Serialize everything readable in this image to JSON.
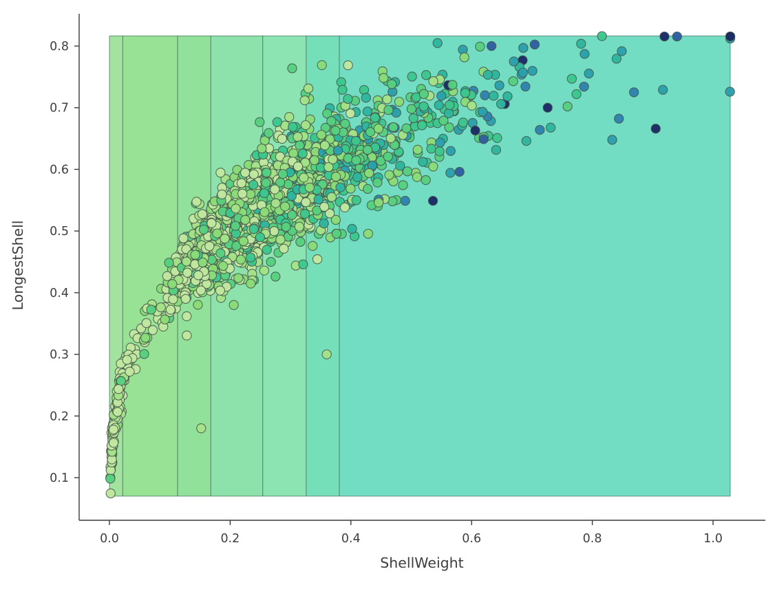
{
  "chart_data": {
    "type": "scatter",
    "title": "",
    "xlabel": "ShellWeight",
    "ylabel": "LongestShell",
    "x_ticks": [
      0.0,
      0.2,
      0.4,
      0.6,
      0.8,
      1.0
    ],
    "x_tick_labels": [
      "0.0",
      "0.2",
      "0.4",
      "0.6",
      "0.8",
      "1.0"
    ],
    "y_ticks": [
      0.1,
      0.2,
      0.3,
      0.4,
      0.5,
      0.6,
      0.7,
      0.8
    ],
    "y_tick_labels": [
      "0.1",
      "0.2",
      "0.3",
      "0.4",
      "0.5",
      "0.6",
      "0.7",
      "0.8"
    ],
    "xlim": [
      -0.05,
      1.08
    ],
    "ylim": [
      0.045,
      0.845
    ],
    "grid": false,
    "legend": null,
    "text_color": "#3f3f3f",
    "spine_color": "#3a3a3a",
    "background_bands": {
      "note": "vertical partition bands covering the data extent, light green to teal left-to-right",
      "y_range": [
        0.07,
        0.8165
      ],
      "edges_x": [
        0.0,
        0.022,
        0.113,
        0.168,
        0.254,
        0.326,
        0.381,
        1.0285
      ],
      "fills": [
        "#a2e49f",
        "#97e295",
        "#92e19b",
        "#8ce2aa",
        "#8be4b2",
        "#75dfba",
        "#72ddc3"
      ],
      "edge_color": "#4c7361"
    },
    "points": {
      "count": 1650,
      "marker_radius_px": 6.6,
      "marker_edge_color": "#45564b",
      "fill_opacity": 0.97,
      "palette": [
        "#c1e79f",
        "#a5e287",
        "#8adc78",
        "#57d07f",
        "#3cc78d",
        "#2eb69f",
        "#2aa0ac",
        "#2d83ae",
        "#2c5fa0",
        "#1a2a66"
      ],
      "trend": {
        "a": 0.828,
        "p": 0.31
      },
      "x_range": [
        0.0008,
        1.0285
      ],
      "y_range": [
        0.074,
        0.8155
      ],
      "seed": 1337,
      "x_mixture": {
        "main_log_median": 0.26,
        "main_log_sigma": 0.45,
        "low_fraction": 0.06,
        "low_log_median": 0.012,
        "low_log_sigma": 0.8
      },
      "y_noise": {
        "base": 0.014,
        "slope": 0.036,
        "x_scale": 0.3
      },
      "color_model": {
        "gain": 8.2,
        "offset": -0.35,
        "noise": 1.5
      }
    },
    "highlight_points": [
      {
        "x": 1.028,
        "y": 0.726,
        "c": 6
      },
      {
        "x": 0.917,
        "y": 0.729,
        "c": 6
      },
      {
        "x": 0.905,
        "y": 0.666,
        "c": 9
      },
      {
        "x": 0.869,
        "y": 0.725,
        "c": 7
      },
      {
        "x": 0.833,
        "y": 0.648,
        "c": 6
      },
      {
        "x": 0.816,
        "y": 0.816,
        "c": 4
      },
      {
        "x": 0.759,
        "y": 0.702,
        "c": 3
      },
      {
        "x": 0.726,
        "y": 0.7,
        "c": 9
      },
      {
        "x": 0.713,
        "y": 0.664,
        "c": 7
      },
      {
        "x": 0.67,
        "y": 0.775,
        "c": 6
      },
      {
        "x": 0.685,
        "y": 0.757,
        "c": 6
      },
      {
        "x": 0.633,
        "y": 0.8,
        "c": 8
      },
      {
        "x": 0.62,
        "y": 0.649,
        "c": 8
      },
      {
        "x": 0.606,
        "y": 0.663,
        "c": 9
      },
      {
        "x": 0.58,
        "y": 0.596,
        "c": 8
      },
      {
        "x": 0.536,
        "y": 0.549,
        "c": 9
      },
      {
        "x": 0.49,
        "y": 0.549,
        "c": 7
      },
      {
        "x": 0.352,
        "y": 0.769,
        "c": 2
      },
      {
        "x": 0.36,
        "y": 0.3,
        "c": 1
      },
      {
        "x": 0.206,
        "y": 0.38,
        "c": 2
      },
      {
        "x": 0.152,
        "y": 0.18,
        "c": 1
      },
      {
        "x": 0.002,
        "y": 0.0745,
        "c": 0
      }
    ]
  }
}
